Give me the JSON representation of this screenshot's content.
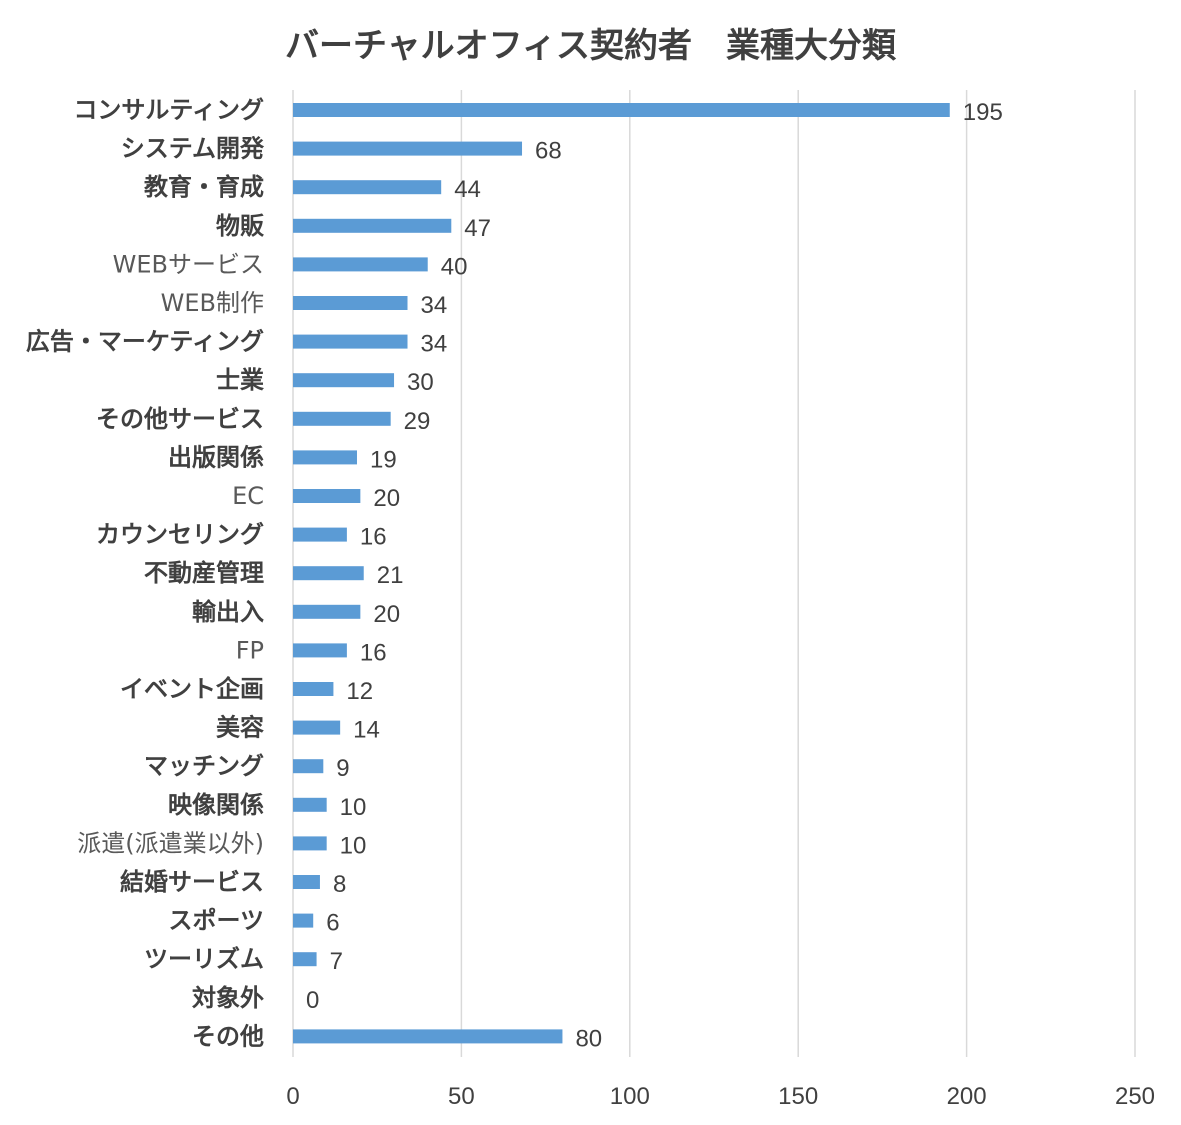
{
  "chart_data": {
    "type": "bar",
    "orientation": "horizontal",
    "title": "バーチャルオフィス契約者　業種大分類",
    "xlabel": "",
    "ylabel": "",
    "xlim": [
      0,
      250
    ],
    "x_ticks": [
      "0",
      "50",
      "100",
      "150",
      "200",
      "250"
    ],
    "grid": true,
    "legend": "none",
    "bar_color": "#5B9BD5",
    "categories": [
      "コンサルティング",
      "システム開発",
      "教育・育成",
      "物販",
      "WEBサービス",
      "WEB制作",
      "広告・マーケティング",
      "士業",
      "その他サービス",
      "出版関係",
      "EC",
      "カウンセリング",
      "不動産管理",
      "輸出入",
      "FP",
      "イベント企画",
      "美容",
      "マッチング",
      "映像関係",
      "派遣(派遣業以外)",
      "結婚サービス",
      "スポーツ",
      "ツーリズム",
      "対象外",
      "その他"
    ],
    "values": [
      195,
      68,
      44,
      47,
      40,
      34,
      34,
      30,
      29,
      19,
      20,
      16,
      21,
      20,
      16,
      12,
      14,
      9,
      10,
      10,
      8,
      6,
      7,
      0,
      80
    ]
  }
}
